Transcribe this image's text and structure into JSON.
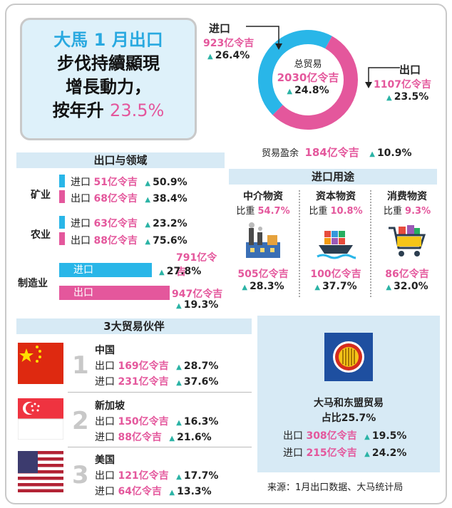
{
  "headline": {
    "line1": "大馬 1 月出口",
    "line2": "步伐持續顯現",
    "line3": "增長動力，",
    "line4_prefix": "按年升 ",
    "line4_value": "23.5%"
  },
  "chart_data": {
    "type": "pie",
    "title": "总贸易",
    "total": {
      "label": "总贸易",
      "value": "2030亿令吉",
      "growth": "24.8%"
    },
    "categories": [
      "进口",
      "出口"
    ],
    "values": [
      923,
      1107
    ],
    "display_values": [
      "923亿令吉",
      "1107亿令吉"
    ],
    "growth": [
      "26.4%",
      "23.5%"
    ],
    "colors": [
      "#29b6e8",
      "#e4579c"
    ]
  },
  "surplus": {
    "label": "贸易盈余",
    "value": "184亿令吉",
    "growth": "10.9%"
  },
  "sectors": {
    "title": "出口与领域",
    "items": [
      {
        "name": "矿业",
        "import_label": "进口",
        "import_value": "51亿令吉",
        "import_growth": "50.9%",
        "export_label": "出口",
        "export_value": "68亿令吉",
        "export_growth": "38.4%"
      },
      {
        "name": "农业",
        "import_label": "进口",
        "import_value": "63亿令吉",
        "import_growth": "23.2%",
        "export_label": "出口",
        "export_value": "88亿令吉",
        "export_growth": "75.6%"
      },
      {
        "name": "制造业",
        "import_label": "进口",
        "import_value": "791亿令吉",
        "import_growth": "27.8%",
        "export_label": "出口",
        "export_value": "947亿令吉",
        "export_growth": "19.3%"
      }
    ]
  },
  "import_use": {
    "title": "进口用途",
    "share_label": "比重",
    "items": [
      {
        "name": "中介物资",
        "share": "54.7%",
        "value": "505亿令吉",
        "growth": "28.3%",
        "icon": "factory-icon"
      },
      {
        "name": "资本物资",
        "share": "10.8%",
        "value": "100亿令吉",
        "growth": "37.7%",
        "icon": "cargo-ship-icon"
      },
      {
        "name": "消费物资",
        "share": "9.3%",
        "value": "86亿令吉",
        "growth": "32.0%",
        "icon": "shopping-cart-icon"
      }
    ]
  },
  "partners": {
    "title": "3大贸易伙伴",
    "items": [
      {
        "rank": "1",
        "country": "中国",
        "export_label": "出口",
        "export_value": "169亿令吉",
        "export_growth": "28.7%",
        "import_label": "进口",
        "import_value": "231亿令吉",
        "import_growth": "37.6%",
        "flag": "china-flag-icon"
      },
      {
        "rank": "2",
        "country": "新加坡",
        "export_label": "出口",
        "export_value": "150亿令吉",
        "export_growth": "16.3%",
        "import_label": "进口",
        "import_value": "88亿令吉",
        "import_growth": "21.6%",
        "flag": "singapore-flag-icon"
      },
      {
        "rank": "3",
        "country": "美国",
        "export_label": "出口",
        "export_value": "121亿令吉",
        "export_growth": "17.7%",
        "import_label": "进口",
        "import_value": "64亿令吉",
        "import_growth": "13.3%",
        "flag": "usa-flag-icon"
      }
    ]
  },
  "asean": {
    "title": "大马和东盟贸易",
    "share": "占比25.7%",
    "export_label": "出口",
    "export_value": "308亿令吉",
    "export_growth": "19.5%",
    "import_label": "进口",
    "import_value": "215亿令吉",
    "import_growth": "24.2%",
    "icon": "asean-logo-icon"
  },
  "source": "来源：1月出口数据、大马统计局"
}
